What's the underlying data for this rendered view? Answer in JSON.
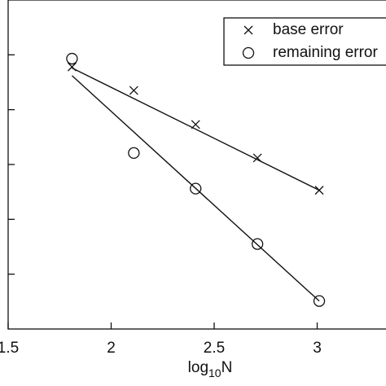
{
  "chart_data": {
    "type": "scatter",
    "x_label": {
      "base": "log",
      "subscript": "10",
      "variable": "N"
    },
    "xlim": [
      1.5,
      3.5
    ],
    "xticks": [
      1.5,
      2,
      2.5,
      3
    ],
    "ylim": [
      0,
      6
    ],
    "yticks": [
      1,
      2,
      3,
      4,
      5
    ],
    "series": [
      {
        "name": "base error",
        "marker": "x",
        "color": "#111111",
        "x": [
          1.81,
          2.11,
          2.41,
          2.71,
          3.01
        ],
        "values": [
          4.78,
          4.35,
          3.73,
          3.12,
          2.53
        ]
      },
      {
        "name": "remaining error",
        "marker": "o",
        "color": "#111111",
        "x": [
          1.81,
          2.11,
          2.41,
          2.71,
          3.01
        ],
        "values": [
          4.93,
          3.21,
          2.56,
          1.55,
          0.51
        ]
      }
    ],
    "fits": [
      {
        "x": [
          1.81,
          3.01
        ],
        "values": [
          4.76,
          2.53
        ]
      },
      {
        "x": [
          1.81,
          3.01
        ],
        "values": [
          4.62,
          0.51
        ]
      }
    ],
    "legend": "upper right"
  }
}
